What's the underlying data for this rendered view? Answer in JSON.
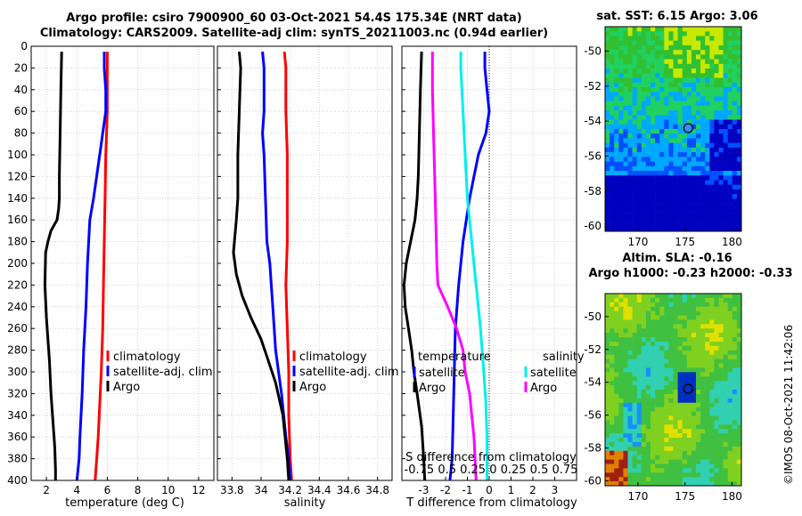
{
  "header": {
    "line1": "Argo profile: csiro 7900900_60 03-Oct-2021 54.4S 175.34E (NRT data)",
    "line2": "Climatology: CARS2009. Satellite-adj clim: synTS_20211003.nc (0.94d earlier)"
  },
  "colors": {
    "climatology": "#ff0000",
    "satellite": "#0000ff",
    "argo": "#000000",
    "sal_satellite": "#00eeee",
    "sal_argo": "#ff00ff"
  },
  "watermark": "©IMOS 08-Oct-2021 11:42:06",
  "chart_data": [
    {
      "type": "line",
      "id": "temperature",
      "xlabel": "temperature (deg C)",
      "ylabel": "",
      "xlim": [
        1,
        13
      ],
      "ylim": [
        0,
        400
      ],
      "xticks": [
        2,
        4,
        6,
        8,
        10,
        12
      ],
      "yticks": [
        0,
        20,
        40,
        60,
        80,
        100,
        120,
        140,
        160,
        180,
        200,
        220,
        240,
        260,
        280,
        300,
        320,
        340,
        360,
        380,
        400
      ],
      "legend": {
        "placement": "middle-right",
        "entries": [
          "climatology",
          "satellite-adj. clim",
          "Argo"
        ]
      },
      "series": [
        {
          "name": "climatology",
          "color": "#ff0000",
          "x": [
            6.0,
            6.0,
            6.0,
            5.95,
            5.9,
            5.85,
            5.8,
            5.75,
            5.7,
            5.6,
            5.5,
            5.4,
            5.3,
            5.2
          ],
          "y": [
            5,
            20,
            60,
            80,
            100,
            140,
            180,
            220,
            260,
            300,
            330,
            360,
            380,
            400
          ]
        },
        {
          "name": "satellite-adj. clim",
          "color": "#0000ff",
          "x": [
            5.8,
            5.8,
            5.9,
            5.9,
            5.8,
            5.5,
            5.1,
            4.85,
            4.7,
            4.6,
            4.45,
            4.35,
            4.2,
            4.15,
            4.0
          ],
          "y": [
            5,
            20,
            40,
            60,
            70,
            100,
            140,
            160,
            200,
            240,
            280,
            320,
            360,
            380,
            400
          ]
        },
        {
          "name": "Argo",
          "color": "#000000",
          "x": [
            3.0,
            2.95,
            2.9,
            2.85,
            2.85,
            2.8,
            2.7,
            2.3,
            2.1,
            1.95,
            1.9,
            2.0,
            2.1,
            2.2,
            2.3,
            2.45,
            2.55,
            2.6,
            2.6
          ],
          "y": [
            5,
            40,
            80,
            120,
            140,
            150,
            160,
            170,
            180,
            190,
            220,
            250,
            270,
            290,
            320,
            350,
            370,
            390,
            400
          ]
        }
      ]
    },
    {
      "type": "line",
      "id": "salinity",
      "xlabel": "salinity",
      "ylabel": "",
      "xlim": [
        33.7,
        34.9
      ],
      "ylim": [
        0,
        400
      ],
      "xticks": [
        33.8,
        34,
        34.2,
        34.4,
        34.6,
        34.8
      ],
      "xtick_labels": [
        "33.8",
        "34",
        "34.2",
        "34.4",
        "34.6",
        "34.8"
      ],
      "legend": {
        "placement": "middle-right",
        "entries": [
          "climatology",
          "satellite-adj. clim",
          "Argo"
        ]
      },
      "series": [
        {
          "name": "climatology",
          "color": "#ff0000",
          "x": [
            34.16,
            34.17,
            34.17,
            34.18,
            34.18,
            34.18,
            34.17,
            34.18,
            34.19,
            34.19,
            34.2,
            34.21
          ],
          "y": [
            5,
            20,
            60,
            100,
            140,
            180,
            220,
            260,
            300,
            340,
            380,
            400
          ]
        },
        {
          "name": "satellite-adj. clim",
          "color": "#0000ff",
          "x": [
            34.01,
            34.02,
            34.02,
            34.01,
            34.02,
            34.03,
            34.04,
            34.06,
            34.08,
            34.1,
            34.14,
            34.17,
            34.19,
            34.2
          ],
          "y": [
            5,
            20,
            60,
            80,
            100,
            140,
            180,
            200,
            240,
            280,
            320,
            360,
            380,
            400
          ]
        },
        {
          "name": "Argo",
          "color": "#000000",
          "x": [
            33.85,
            33.86,
            33.85,
            33.84,
            33.84,
            33.83,
            33.82,
            33.81,
            33.83,
            33.87,
            33.93,
            34.0,
            34.05,
            34.1,
            34.15,
            34.18,
            34.19
          ],
          "y": [
            5,
            20,
            60,
            100,
            140,
            160,
            175,
            190,
            210,
            230,
            250,
            270,
            290,
            310,
            340,
            380,
            400
          ]
        }
      ]
    },
    {
      "type": "line",
      "id": "difference",
      "xlabel": "T difference from climatology",
      "title_lower": "S difference from climatology",
      "xlim": [
        -4,
        4
      ],
      "ylim": [
        0,
        400
      ],
      "xticks": [
        -3,
        -2,
        -1,
        0,
        1,
        2,
        3
      ],
      "secondary_ticks_label": "-0.75 0.5 0.25 0 0.25 0.5 0.75",
      "legend_temperature": {
        "title": "temperature",
        "entries": [
          "satellite",
          "Argo"
        ]
      },
      "legend_salinity": {
        "title": "salinity",
        "entries": [
          "satellite",
          "Argo"
        ]
      },
      "series": [
        {
          "name": "T satellite",
          "color": "#0000ff",
          "x": [
            -0.2,
            -0.2,
            -0.1,
            0,
            -0.15,
            -0.5,
            -0.9,
            -1.2,
            -1.4,
            -1.55,
            -1.6,
            -1.65,
            -1.7,
            -1.8
          ],
          "y": [
            5,
            20,
            40,
            60,
            80,
            100,
            140,
            180,
            220,
            260,
            300,
            340,
            380,
            400
          ]
        },
        {
          "name": "T Argo",
          "color": "#000000",
          "x": [
            -3.1,
            -3.15,
            -3.2,
            -3.25,
            -3.3,
            -3.4,
            -3.6,
            -3.8,
            -3.9,
            -3.85,
            -3.7,
            -3.55,
            -3.45,
            -3.3,
            -3.1,
            -3.0,
            -2.95
          ],
          "y": [
            5,
            40,
            80,
            120,
            140,
            160,
            180,
            200,
            220,
            240,
            260,
            280,
            300,
            320,
            350,
            380,
            400
          ]
        },
        {
          "name": "S satellite",
          "color": "#00eeee",
          "x": [
            -1.3,
            -1.3,
            -1.2,
            -1.1,
            -1.0,
            -0.8,
            -0.6,
            -0.4,
            -0.25,
            -0.15,
            -0.1,
            -0.1,
            -0.1
          ],
          "y": [
            5,
            20,
            60,
            100,
            140,
            180,
            220,
            260,
            300,
            330,
            360,
            380,
            400
          ]
        },
        {
          "name": "S Argo",
          "color": "#ff00ff",
          "x": [
            -2.6,
            -2.6,
            -2.55,
            -2.5,
            -2.45,
            -2.4,
            -2.35,
            -1.9,
            -1.5,
            -1.2,
            -1.1,
            -0.9,
            -0.8,
            -0.7,
            -0.6
          ],
          "y": [
            5,
            40,
            80,
            120,
            160,
            200,
            220,
            240,
            260,
            280,
            300,
            320,
            340,
            360,
            400
          ]
        }
      ]
    },
    {
      "type": "heatmap",
      "id": "sst-map",
      "title": "sat. SST: 6.15 Argo: 3.06",
      "xlim": [
        166.5,
        181
      ],
      "ylim": [
        -60.3,
        -48.6
      ],
      "xticks": [
        170,
        175,
        180
      ],
      "yticks": [
        -50,
        -52,
        -54,
        -56,
        -58,
        -60
      ],
      "marker": {
        "lon": 175.34,
        "lat": -54.4
      }
    },
    {
      "type": "heatmap",
      "id": "sla-map",
      "title": "Altim. SLA: -0.16",
      "subtitle": "Argo h1000: -0.23 h2000: -0.33",
      "xlim": [
        166.5,
        181
      ],
      "ylim": [
        -60.3,
        -48.6
      ],
      "xticks": [
        170,
        175,
        180
      ],
      "yticks": [
        -50,
        -52,
        -54,
        -56,
        -58,
        -60
      ],
      "marker": {
        "lon": 175.34,
        "lat": -54.4
      }
    }
  ]
}
